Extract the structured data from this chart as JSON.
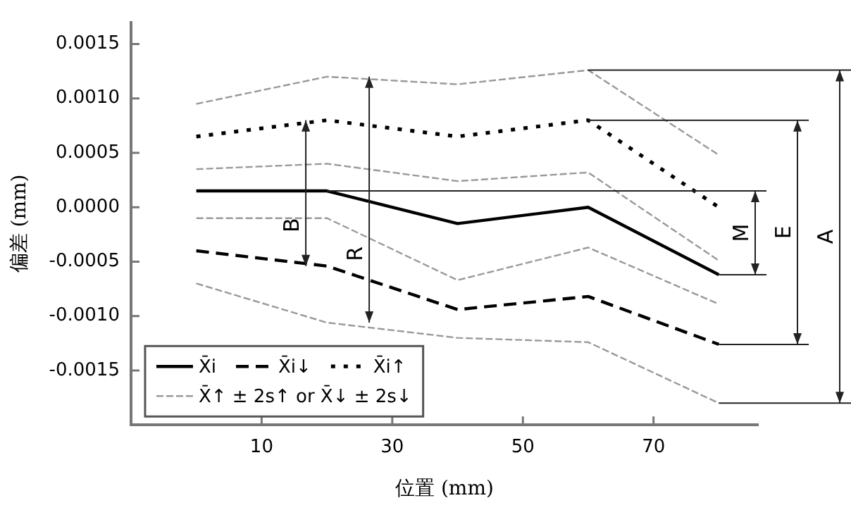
{
  "chart_data": {
    "type": "line",
    "xlabel": "位置 (mm)",
    "ylabel": "偏差 (mm)",
    "x": [
      0,
      20,
      40,
      60,
      80
    ],
    "xlim": [
      -10,
      86
    ],
    "xticks": [
      10,
      30,
      50,
      70
    ],
    "ylim": [
      -0.002,
      0.0017
    ],
    "yticks": [
      {
        "value": 0.0015,
        "label": "0.0015"
      },
      {
        "value": 0.001,
        "label": "0.0010"
      },
      {
        "value": 0.0005,
        "label": "0.0005"
      },
      {
        "value": 0,
        "label": "0.0000"
      },
      {
        "value": -0.0005,
        "label": "-0.0005"
      },
      {
        "value": -0.001,
        "label": "-0.0010"
      },
      {
        "value": -0.0015,
        "label": "-0.0015"
      }
    ],
    "grid": false,
    "legend": "bottom left",
    "marker": "none",
    "series": [
      {
        "name": "X̄i",
        "color": "#000000",
        "line_style": "solid",
        "values": [
          0.00015,
          0.00015,
          -0.00015,
          0.0,
          -0.00062
        ]
      },
      {
        "name": "X̄i↓",
        "color": "#000000",
        "line_style": "dashed",
        "values": [
          -0.0004,
          -0.00054,
          -0.00094,
          -0.00082,
          -0.00126
        ]
      },
      {
        "name": "X̄i↑",
        "color": "#000000",
        "line_style": "dotted",
        "values": [
          0.00065,
          0.0008,
          0.00065,
          0.0008,
          0.0
        ]
      },
      {
        "name": "X̄↑ ± 2s↑ or X̄↓ ± 2s↓",
        "color": "#999999",
        "line_style": "dashed",
        "values": [
          0.00095,
          0.0012,
          0.00113,
          0.00126,
          0.00048
        ]
      },
      {
        "color": "#999999",
        "line_style": "dashed",
        "values": [
          0.00035,
          0.0004,
          0.00024,
          0.00032,
          -0.00049
        ]
      },
      {
        "color": "#999999",
        "line_style": "dashed",
        "values": [
          -0.0001,
          -0.0001,
          -0.00067,
          -0.00037,
          -0.00089
        ]
      },
      {
        "color": "#999999",
        "line_style": "dashed",
        "values": [
          -0.0007,
          -0.00106,
          -0.0012,
          -0.00124,
          -0.0018
        ]
      }
    ],
    "ref_lines": [
      {
        "axis": "y",
        "value": 0.00126
      },
      {
        "axis": "y",
        "value": 0.0008
      },
      {
        "axis": "y",
        "value": 0.00015
      }
    ],
    "annotations": [
      "B",
      "R",
      "M",
      "E",
      "A"
    ]
  }
}
